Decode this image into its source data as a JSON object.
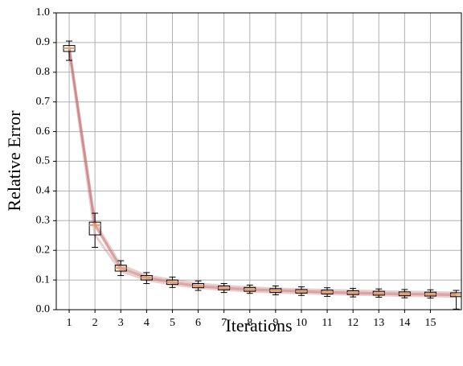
{
  "chart_data": {
    "type": "box",
    "xlabel": "Iterations",
    "ylabel": "Relative Error",
    "x": [
      1,
      2,
      3,
      4,
      5,
      6,
      7,
      8,
      9,
      10,
      11,
      12,
      13,
      14,
      15,
      16
    ],
    "low": [
      0.84,
      0.21,
      0.115,
      0.088,
      0.075,
      0.065,
      0.058,
      0.055,
      0.05,
      0.048,
      0.045,
      0.043,
      0.042,
      0.04,
      0.039,
      0.002
    ],
    "q1": [
      0.87,
      0.252,
      0.13,
      0.1,
      0.085,
      0.074,
      0.067,
      0.062,
      0.058,
      0.056,
      0.053,
      0.051,
      0.049,
      0.047,
      0.046,
      0.044
    ],
    "median": [
      0.881,
      0.285,
      0.14,
      0.108,
      0.092,
      0.08,
      0.073,
      0.068,
      0.065,
      0.062,
      0.059,
      0.057,
      0.055,
      0.053,
      0.052,
      0.05
    ],
    "q3": [
      0.89,
      0.295,
      0.15,
      0.115,
      0.1,
      0.088,
      0.08,
      0.075,
      0.071,
      0.068,
      0.066,
      0.064,
      0.062,
      0.06,
      0.059,
      0.057
    ],
    "high": [
      0.905,
      0.325,
      0.165,
      0.125,
      0.11,
      0.097,
      0.088,
      0.083,
      0.08,
      0.077,
      0.074,
      0.072,
      0.07,
      0.068,
      0.067,
      0.065
    ],
    "box_color": "#000000",
    "median_color": "#e8a060",
    "line_color": "#c47070",
    "xlim": [
      0.5,
      16.2
    ],
    "ylim": [
      0,
      1
    ],
    "xticks": [
      1,
      2,
      3,
      4,
      5,
      6,
      7,
      8,
      9,
      10,
      11,
      12,
      13,
      14,
      15
    ],
    "yticks": [
      {
        "value": 0,
        "label": "0.0"
      },
      0.1,
      0.2,
      0.3,
      0.4,
      0.5,
      0.6,
      0.7,
      0.8,
      0.9,
      {
        "value": 1,
        "label": "1.0"
      }
    ],
    "grid": true
  }
}
